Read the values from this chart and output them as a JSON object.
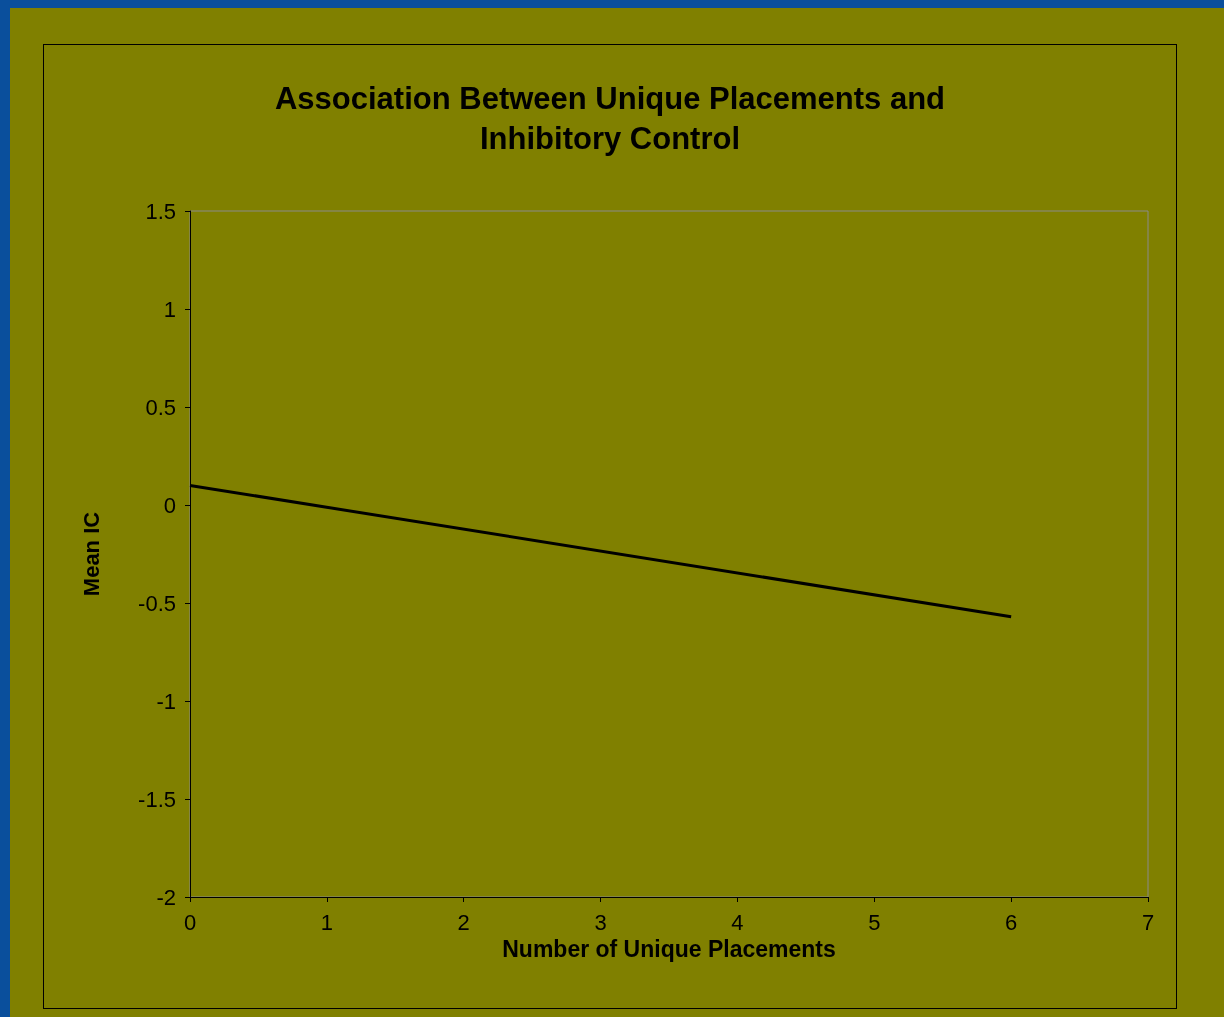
{
  "chart_data": {
    "type": "line",
    "title": "Association Between Unique Placements and\nInhibitory Control",
    "xlabel": "Number of Unique Placements",
    "ylabel": "Mean IC",
    "x": [
      0,
      6
    ],
    "series": [
      {
        "color": "#000000",
        "values": [
          0.1,
          -0.57
        ]
      }
    ],
    "xlim": [
      0,
      7
    ],
    "xticks": [
      0,
      1,
      2,
      3,
      4,
      5,
      6,
      7
    ],
    "ylim": [
      -2,
      1.5
    ],
    "yticks": [
      -2,
      -1.5,
      -1,
      -0.5,
      0,
      0.5,
      1,
      1.5
    ],
    "grid": false,
    "marker": "none",
    "line_style": "solid"
  }
}
